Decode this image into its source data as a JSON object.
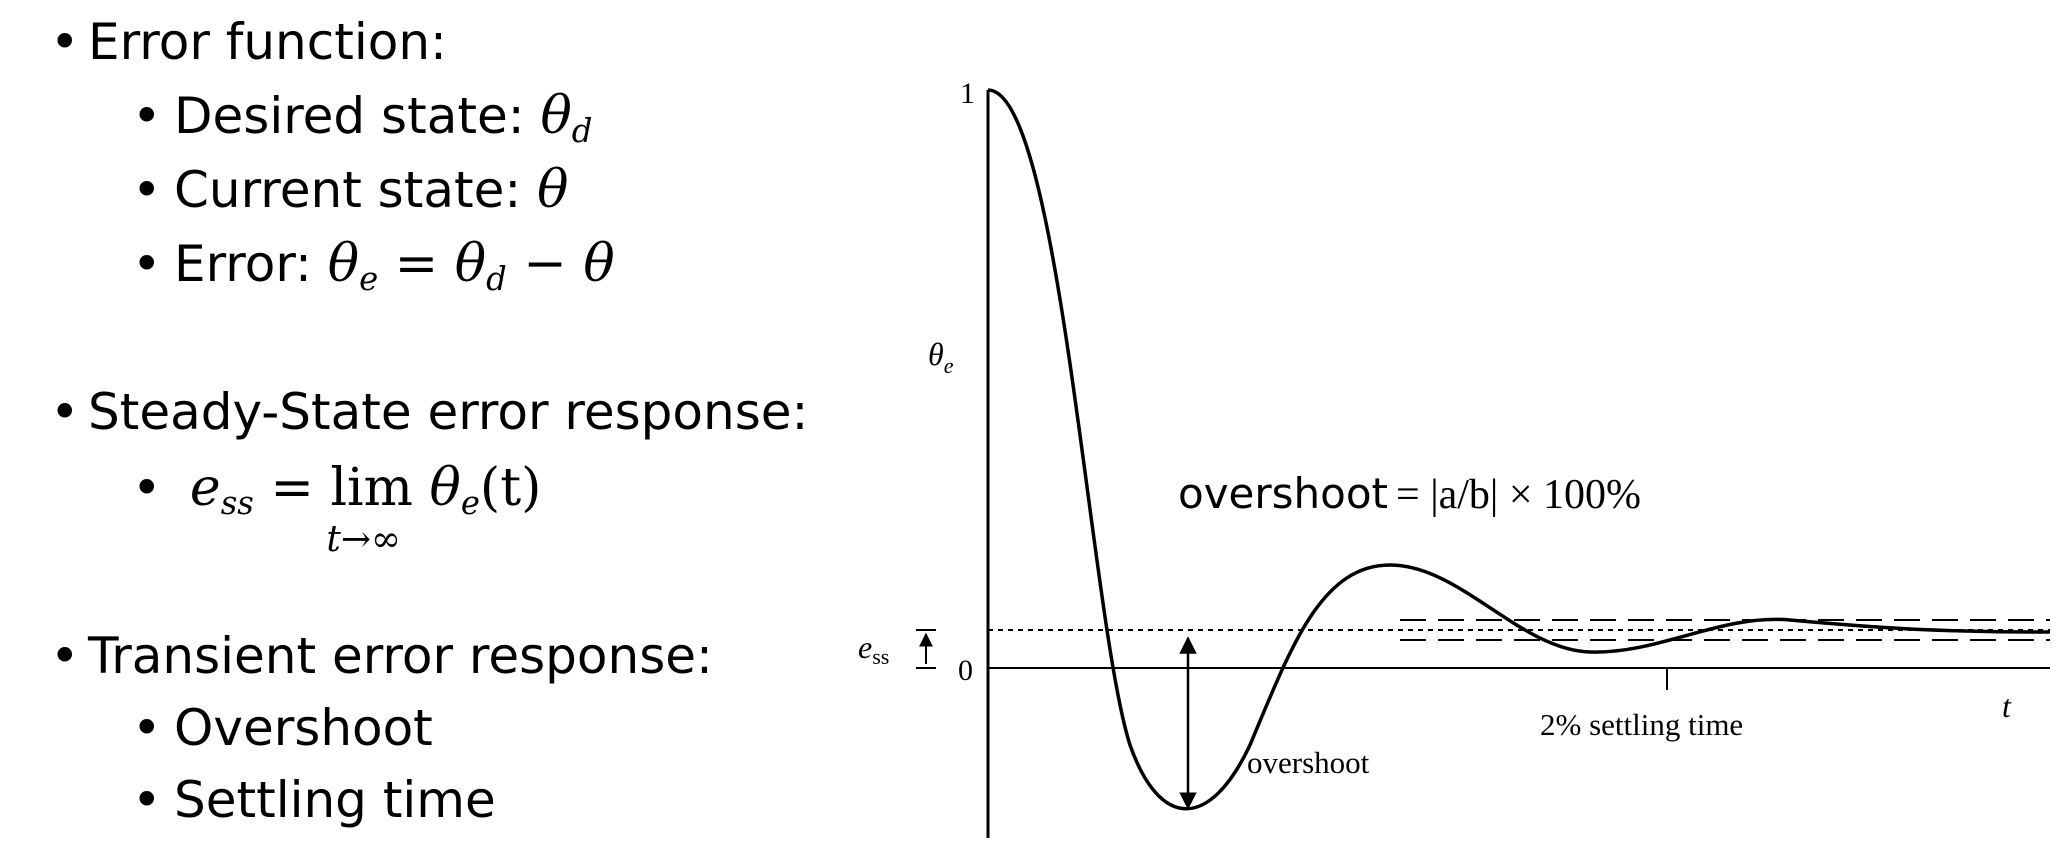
{
  "bullets": {
    "error_function": "Error function:",
    "desired": {
      "label": "Desired state:",
      "sym": "θ",
      "sub": "d"
    },
    "current": {
      "label": "Current state:",
      "sym": "θ"
    },
    "error": {
      "label": "Error:",
      "lhs": "θ",
      "lhs_sub": "e",
      "eq": "=",
      "rhs": "θ",
      "rhs_sub": "d",
      "minus": "−",
      "rhs2": "θ"
    },
    "steady_state": "Steady-State error response:",
    "ess": {
      "e": "e",
      "e_sub": "ss",
      "eq": "=",
      "lim": "lim",
      "lim_under": "t→∞",
      "theta": "θ",
      "theta_sub": "e",
      "arg": "(t)"
    },
    "transient": "Transient error response:",
    "overshoot": "Overshoot",
    "settling": "Settling time"
  },
  "diagram": {
    "y_axis_label": "θ",
    "y_axis_label_sub": "e",
    "tick_one": "1",
    "tick_zero": "0",
    "ess_label": "e",
    "ess_sub": "ss",
    "t_label": "t",
    "overshoot_formula_word": "overshoot",
    "overshoot_formula_rest": "= |a/b| × 100%",
    "overshoot_arrow_label": "overshoot",
    "settling_label": "2% settling time"
  }
}
